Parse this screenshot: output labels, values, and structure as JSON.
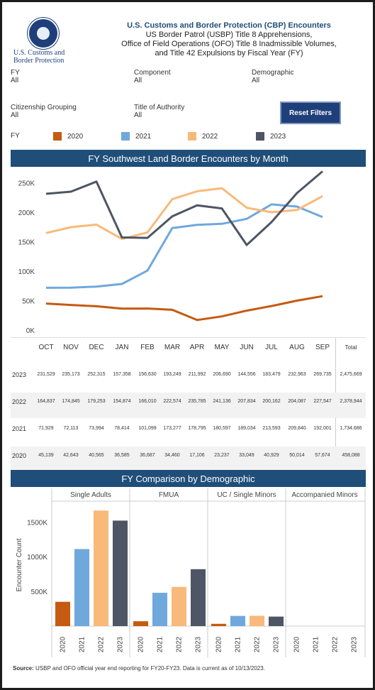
{
  "header": {
    "title": "U.S. Customs and Border Protection (CBP) Encounters",
    "subtitle_lines": [
      "US Border Patrol (USBP) Title 8 Apprehensions,",
      "Office of Field Operations (OFO) Title 8 Inadmissible Volumes,",
      "and Title 42 Expulsions by Fiscal Year (FY)"
    ],
    "logo_lines": [
      "U.S. Customs and",
      "Border Protection"
    ]
  },
  "filters": {
    "fy": {
      "label": "FY",
      "value": "All"
    },
    "component": {
      "label": "Component",
      "value": "All"
    },
    "demographic": {
      "label": "Demographic",
      "value": "All"
    },
    "citizenship": {
      "label": "Citizenship Grouping",
      "value": "All"
    },
    "authority": {
      "label": "Title of Authority",
      "value": "All"
    },
    "reset_label": "Reset Filters"
  },
  "legend": {
    "label": "FY",
    "items": [
      {
        "name": "2020",
        "color": "#c55a11"
      },
      {
        "name": "2021",
        "color": "#6fa8dc"
      },
      {
        "name": "2022",
        "color": "#f9b97a"
      },
      {
        "name": "2023",
        "color": "#4e5564"
      }
    ]
  },
  "chart_data": [
    {
      "type": "line",
      "title": "FY Southwest Land Border Encounters by Month",
      "categories": [
        "OCT",
        "NOV",
        "DEC",
        "JAN",
        "FEB",
        "MAR",
        "APR",
        "MAY",
        "JUN",
        "JUL",
        "AUG",
        "SEP"
      ],
      "y_ticks": [
        "0K",
        "50K",
        "100K",
        "150K",
        "200K",
        "250K"
      ],
      "ylim": [
        0,
        275000
      ],
      "total_label": "Total",
      "series": [
        {
          "name": "2023",
          "color": "#4e5564",
          "values": [
            231529,
            235173,
            252315,
            157358,
            156630,
            193249,
            211992,
            206690,
            144556,
            183479,
            232963,
            269735
          ],
          "labels": [
            "231,529",
            "235,173",
            "252,315",
            "157,358",
            "156,630",
            "193,249",
            "211,992",
            "206,690",
            "144,556",
            "183,479",
            "232,963",
            "269,735"
          ],
          "total": "2,475,669"
        },
        {
          "name": "2022",
          "color": "#f9b97a",
          "values": [
            164837,
            174845,
            179253,
            154874,
            166010,
            222574,
            235785,
            241136,
            207834,
            200162,
            204087,
            227547
          ],
          "labels": [
            "164,837",
            "174,845",
            "179,253",
            "154,874",
            "166,010",
            "222,574",
            "235,785",
            "241,136",
            "207,834",
            "200,162",
            "204,087",
            "227,547"
          ],
          "total": "2,378,944"
        },
        {
          "name": "2021",
          "color": "#6fa8dc",
          "values": [
            71929,
            72113,
            73994,
            78414,
            101099,
            173277,
            178795,
            180597,
            189034,
            213593,
            209840,
            192001
          ],
          "labels": [
            "71,929",
            "72,113",
            "73,994",
            "78,414",
            "101,099",
            "173,277",
            "178,795",
            "180,597",
            "189,034",
            "213,593",
            "209,840",
            "192,001"
          ],
          "total": "1,734,686"
        },
        {
          "name": "2020",
          "color": "#c55a11",
          "values": [
            45139,
            42643,
            40565,
            36585,
            36687,
            34460,
            17106,
            23237,
            33049,
            40929,
            50014,
            57674
          ],
          "labels": [
            "45,139",
            "42,643",
            "40,565",
            "36,585",
            "36,687",
            "34,460",
            "17,106",
            "23,237",
            "33,049",
            "40,929",
            "50,014",
            "57,674"
          ],
          "total": "458,088"
        }
      ]
    },
    {
      "type": "bar",
      "title": "FY Comparison by Demographic",
      "ylabel": "Encounter Count",
      "y_ticks": [
        "500K",
        "1000K",
        "1500K"
      ],
      "ylim": [
        0,
        1800000
      ],
      "categories": [
        "2020",
        "2021",
        "2022",
        "2023"
      ],
      "colors": [
        "#c55a11",
        "#6fa8dc",
        "#f9b97a",
        "#4e5564"
      ],
      "groups": [
        {
          "name": "Single Adults",
          "values": [
            350000,
            1110000,
            1665000,
            1520000
          ]
        },
        {
          "name": "FMUA",
          "values": [
            70000,
            480000,
            565000,
            820000
          ]
        },
        {
          "name": "UC / Single Minors",
          "values": [
            33000,
            147000,
            149000,
            137000
          ]
        },
        {
          "name": "Accompanied Minors",
          "values": [
            0,
            0,
            0,
            0
          ]
        }
      ]
    }
  ],
  "source": {
    "label": "Source:",
    "text": " USBP and OFO official year end reporting for FY20-FY23. Data is current as of 10/13/2023."
  }
}
